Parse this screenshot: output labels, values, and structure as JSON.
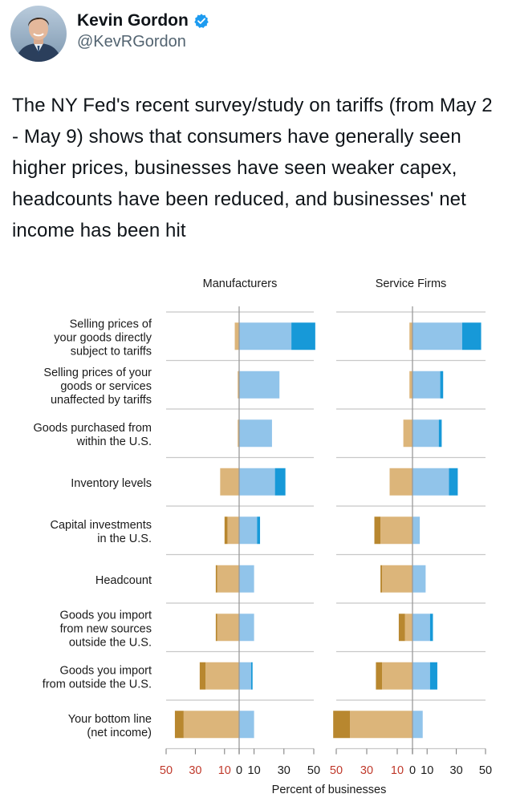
{
  "tweet": {
    "author_name": "Kevin Gordon",
    "handle": "@KevRGordon",
    "verified": true,
    "text": "The NY Fed's recent survey/study on tariffs (from May 2 - May 9) shows that consumers have generally seen higher prices, businesses have seen weaker capex, headcounts have been reduced, and businesses' net income has been hit"
  },
  "colors": {
    "decrease_light": "#dcb57a",
    "decrease_dark": "#b8872f",
    "increase_light": "#91c4ea",
    "increase_dark": "#1799d8",
    "tick_red": "#c0392b",
    "grid": "#c8c8c8",
    "zero_line": "#9a9a9a"
  },
  "chart_data": {
    "type": "bar",
    "orientation": "horizontal-diverging-stacked",
    "xlabel": "Percent of businesses",
    "xlim": [
      -50,
      50
    ],
    "x_ticks": [
      {
        "label": "50",
        "value": -50,
        "color": "red"
      },
      {
        "label": "30",
        "value": -30,
        "color": "red"
      },
      {
        "label": "10",
        "value": -10,
        "color": "red"
      },
      {
        "label": "0",
        "value": 0,
        "color": "dark"
      },
      {
        "label": "10",
        "value": 10,
        "color": "dark"
      },
      {
        "label": "30",
        "value": 30,
        "color": "dark"
      },
      {
        "label": "50",
        "value": 50,
        "color": "dark"
      }
    ],
    "categories": [
      [
        "Selling prices of",
        "your goods directly",
        "subject to tariffs"
      ],
      [
        "Selling prices of your",
        "goods or services",
        "unaffected by tariffs"
      ],
      [
        "Goods purchased from",
        "within the U.S."
      ],
      [
        "Inventory levels"
      ],
      [
        "Capital investments",
        "in the U.S."
      ],
      [
        "Headcount"
      ],
      [
        "Goods you import",
        "from new sources",
        "outside the U.S."
      ],
      [
        "Goods you import",
        "from outside the U.S."
      ],
      [
        "Your bottom line",
        "(net income)"
      ]
    ],
    "panels": [
      {
        "title": "Manufacturers",
        "bars": [
          {
            "dec_large": 0,
            "dec_small": 3,
            "inc_small": 35,
            "inc_large": 16
          },
          {
            "dec_large": 0,
            "dec_small": 1,
            "inc_small": 27,
            "inc_large": 0
          },
          {
            "dec_large": 0,
            "dec_small": 1,
            "inc_small": 22,
            "inc_large": 0
          },
          {
            "dec_large": 0,
            "dec_small": 13,
            "inc_small": 24,
            "inc_large": 7
          },
          {
            "dec_large": 2,
            "dec_small": 8,
            "inc_small": 12,
            "inc_large": 2
          },
          {
            "dec_large": 1,
            "dec_small": 15,
            "inc_small": 10,
            "inc_large": 0
          },
          {
            "dec_large": 1,
            "dec_small": 15,
            "inc_small": 10,
            "inc_large": 0
          },
          {
            "dec_large": 4,
            "dec_small": 23,
            "inc_small": 8,
            "inc_large": 1
          },
          {
            "dec_large": 6,
            "dec_small": 38,
            "inc_small": 10,
            "inc_large": 0
          }
        ]
      },
      {
        "title": "Service Firms",
        "bars": [
          {
            "dec_large": 0,
            "dec_small": 2,
            "inc_small": 34,
            "inc_large": 13
          },
          {
            "dec_large": 0,
            "dec_small": 2,
            "inc_small": 19,
            "inc_large": 2
          },
          {
            "dec_large": 0,
            "dec_small": 6,
            "inc_small": 18,
            "inc_large": 2
          },
          {
            "dec_large": 0,
            "dec_small": 15,
            "inc_small": 25,
            "inc_large": 6
          },
          {
            "dec_large": 4,
            "dec_small": 21,
            "inc_small": 5,
            "inc_large": 0
          },
          {
            "dec_large": 1,
            "dec_small": 20,
            "inc_small": 9,
            "inc_large": 0
          },
          {
            "dec_large": 4,
            "dec_small": 5,
            "inc_small": 12,
            "inc_large": 2
          },
          {
            "dec_large": 4,
            "dec_small": 20,
            "inc_small": 12,
            "inc_large": 5
          },
          {
            "dec_large": 11,
            "dec_small": 41,
            "inc_small": 7,
            "inc_large": 0
          }
        ]
      }
    ]
  }
}
